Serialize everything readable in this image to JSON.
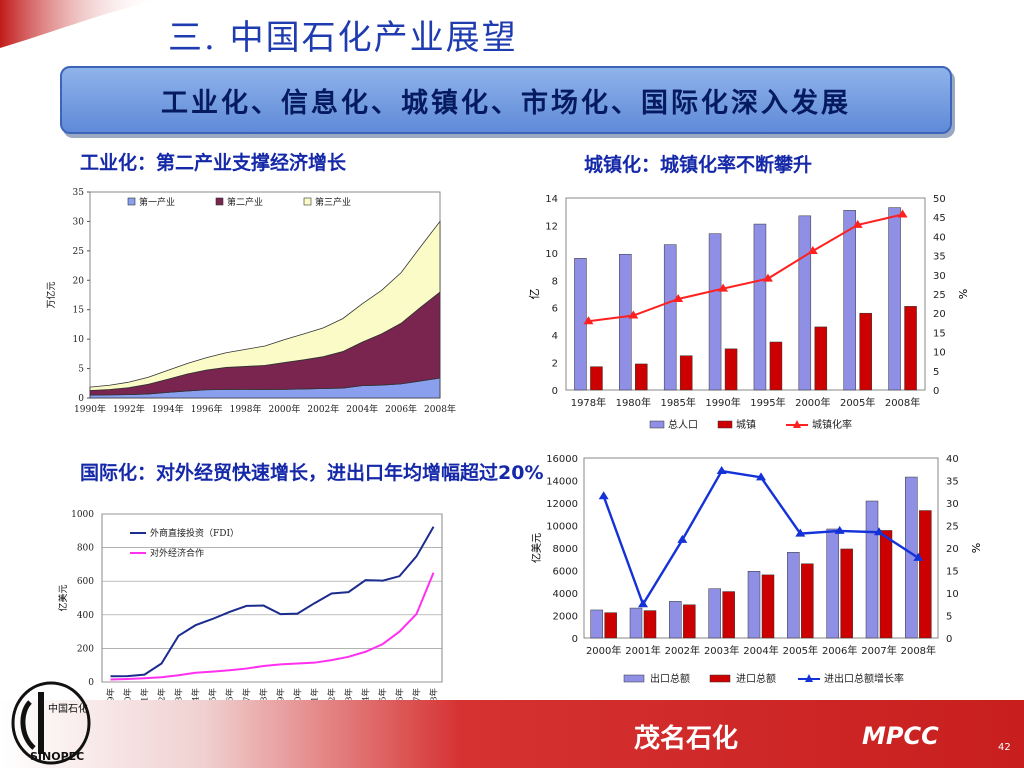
{
  "slide": {
    "title": "三. 中国石化产业展望",
    "banner": "工业化、信息化、城镇化、市场化、国际化深入发展",
    "footer_company": "茂名石化",
    "footer_code": "MPCC",
    "page_number": "42",
    "logo_text": "中国石化",
    "logo_brand": "SINOPEC"
  },
  "headings": {
    "industrial": "工业化：第二产业支撑经济增长",
    "urban": "城镇化：城镇化率不断攀升",
    "international": "国际化：对外经贸快速增长，进出口年均增幅超过20%"
  },
  "chart_data": [
    {
      "id": "industry",
      "type": "area",
      "ylabel": "万亿元",
      "ylim": [
        0,
        35
      ],
      "yticks": [
        0,
        5,
        10,
        15,
        20,
        25,
        30,
        35
      ],
      "x": [
        "1990年",
        "1991年",
        "1992年",
        "1993年",
        "1994年",
        "1995年",
        "1996年",
        "1997年",
        "1998年",
        "1999年",
        "2000年",
        "2001年",
        "2002年",
        "2003年",
        "2004年",
        "2005年",
        "2006年",
        "2007年",
        "2008年"
      ],
      "xtick_labels": [
        "1990年",
        "1992年",
        "1994年",
        "1996年",
        "1998年",
        "2000年",
        "2002年",
        "2004年",
        "2006年",
        "2008年"
      ],
      "stacked": true,
      "legend": "top",
      "series": [
        {
          "name": "第一产业",
          "color": "#8aa0ee",
          "values": [
            0.5,
            0.53,
            0.58,
            0.69,
            0.95,
            1.2,
            1.4,
            1.45,
            1.46,
            1.44,
            1.46,
            1.54,
            1.62,
            1.69,
            2.1,
            2.2,
            2.4,
            2.9,
            3.4
          ]
        },
        {
          "name": "第二产业",
          "color": "#7a2450",
          "values": [
            0.77,
            0.91,
            1.17,
            1.64,
            2.24,
            2.87,
            3.36,
            3.74,
            3.9,
            4.1,
            4.56,
            4.95,
            5.4,
            6.2,
            7.4,
            8.7,
            10.3,
            12.5,
            14.6
          ]
        },
        {
          "name": "第三产业",
          "color": "#fbfbc8",
          "values": [
            0.58,
            0.72,
            0.94,
            1.2,
            1.5,
            1.8,
            2.1,
            2.5,
            2.9,
            3.3,
            3.9,
            4.4,
            4.9,
            5.6,
            6.5,
            7.4,
            8.6,
            10.3,
            12.0
          ]
        }
      ]
    },
    {
      "id": "urbanization",
      "type": "bar",
      "categories": [
        "1978年",
        "1980年",
        "1985年",
        "1990年",
        "1995年",
        "2000年",
        "2005年",
        "2008年"
      ],
      "ylabel": "亿",
      "ylim": [
        0,
        14
      ],
      "yticks": [
        0,
        2,
        4,
        6,
        8,
        10,
        12,
        14
      ],
      "y2label": "%",
      "y2lim": [
        0,
        50
      ],
      "y2ticks": [
        0,
        5,
        10,
        15,
        20,
        25,
        30,
        35,
        40,
        45,
        50
      ],
      "legend": "bottom",
      "series": [
        {
          "name": "总人口",
          "kind": "bar",
          "axis": "left",
          "color": "#8f8fe6",
          "values": [
            9.6,
            9.9,
            10.6,
            11.4,
            12.1,
            12.7,
            13.1,
            13.3
          ]
        },
        {
          "name": "城镇",
          "kind": "bar",
          "axis": "left",
          "color": "#cc0000",
          "values": [
            1.7,
            1.9,
            2.5,
            3.0,
            3.5,
            4.6,
            5.6,
            6.1
          ]
        },
        {
          "name": "城镇化率",
          "kind": "line",
          "axis": "right",
          "color": "#ff2020",
          "values": [
            17.9,
            19.4,
            23.7,
            26.4,
            29.0,
            36.2,
            43.0,
            45.7
          ]
        }
      ]
    },
    {
      "id": "fdi",
      "type": "line",
      "ylabel": "亿美元",
      "ylim": [
        0,
        1000
      ],
      "yticks": [
        0,
        200,
        400,
        600,
        800,
        1000
      ],
      "x": [
        "1989年",
        "1990年",
        "1991年",
        "1992年",
        "1993年",
        "1994年",
        "1995年",
        "1996年",
        "1997年",
        "1998年",
        "1999年",
        "2000年",
        "2001年",
        "2002年",
        "2003年",
        "2004年",
        "2005年",
        "2006年",
        "2007年",
        "2008年"
      ],
      "legend": "top-left",
      "series": [
        {
          "name": "外商直接投资（FDI）",
          "color": "#1c2c8e",
          "values": [
            34,
            35,
            44,
            110,
            275,
            338,
            375,
            417,
            453,
            455,
            404,
            407,
            469,
            527,
            535,
            606,
            603,
            630,
            748,
            924
          ]
        },
        {
          "name": "对外经济合作",
          "color": "#ff30f0",
          "values": [
            15,
            18,
            22,
            28,
            40,
            55,
            62,
            70,
            80,
            95,
            105,
            110,
            115,
            130,
            150,
            180,
            225,
            300,
            405,
            650
          ]
        }
      ]
    },
    {
      "id": "trade",
      "type": "bar",
      "categories": [
        "2000年",
        "2001年",
        "2002年",
        "2003年",
        "2004年",
        "2005年",
        "2006年",
        "2007年",
        "2008年"
      ],
      "ylabel": "亿美元",
      "ylim": [
        0,
        16000
      ],
      "yticks": [
        0,
        2000,
        4000,
        6000,
        8000,
        10000,
        12000,
        14000,
        16000
      ],
      "ytick_labels": [
        "0",
        "2000",
        "4000",
        "6000",
        "8000",
        "10000",
        "12000",
        "14000",
        "16000"
      ],
      "y2label": "%",
      "y2lim": [
        0,
        40
      ],
      "y2ticks": [
        0,
        5,
        10,
        15,
        20,
        25,
        30,
        35,
        40
      ],
      "legend": "bottom",
      "series": [
        {
          "name": "出口总额",
          "kind": "bar",
          "axis": "left",
          "color": "#8f8fe6",
          "values": [
            2492,
            2661,
            3256,
            4382,
            5933,
            7620,
            9689,
            12178,
            14307
          ]
        },
        {
          "name": "进口总额",
          "kind": "bar",
          "axis": "left",
          "color": "#cc0000",
          "values": [
            2251,
            2436,
            2952,
            4128,
            5612,
            6600,
            7915,
            9560,
            11331
          ]
        },
        {
          "name": "进出口总额增长率",
          "kind": "line",
          "axis": "right",
          "color": "#1432d8",
          "values": [
            31.5,
            7.5,
            21.8,
            37.1,
            35.7,
            23.2,
            23.8,
            23.5,
            17.8
          ]
        }
      ]
    }
  ]
}
